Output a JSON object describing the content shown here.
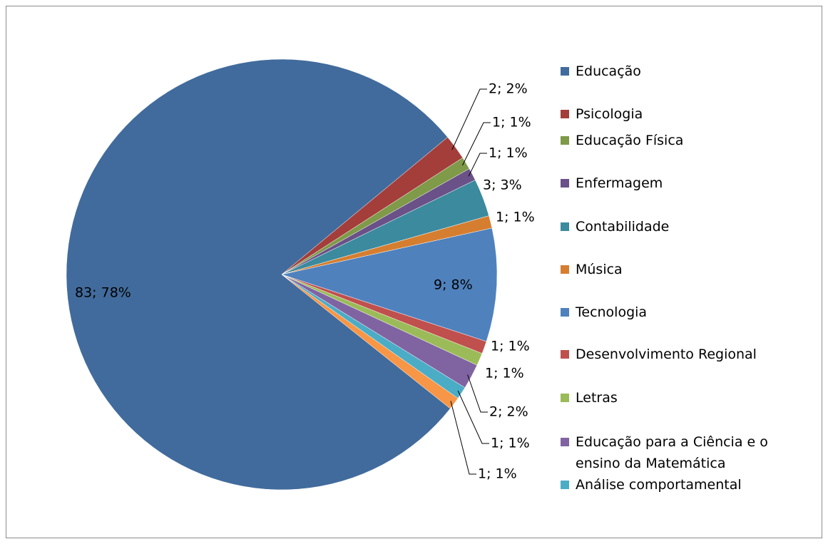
{
  "chart_data": {
    "type": "pie",
    "categories": [
      "Educação",
      "Psicologia",
      "Educação Física",
      "Enfermagem",
      "Contabilidade",
      "Música",
      "Tecnologia",
      "Desenvolvimento Regional",
      "Letras",
      "Educação para a Ciência e o ensino da Matemática",
      "Análise comportamental",
      null
    ],
    "values": [
      83,
      2,
      1,
      1,
      3,
      1,
      9,
      1,
      1,
      2,
      1,
      1
    ],
    "value_labels": [
      "83; 78%",
      "2; 2%",
      "1; 1%",
      "1; 1%",
      "3; 3%",
      "1; 1%",
      "9; 8%",
      "1; 1%",
      "1; 1%",
      "2; 2%",
      "1; 1%",
      "1; 1%"
    ],
    "colors": [
      "#416B9C",
      "#A43E3B",
      "#7F9A48",
      "#6A5188",
      "#3B8A9E",
      "#D57E30",
      "#4F81BD",
      "#C0504D",
      "#9BBB59",
      "#8064A2",
      "#4BACC6",
      "#F79646"
    ],
    "legend": "right"
  }
}
